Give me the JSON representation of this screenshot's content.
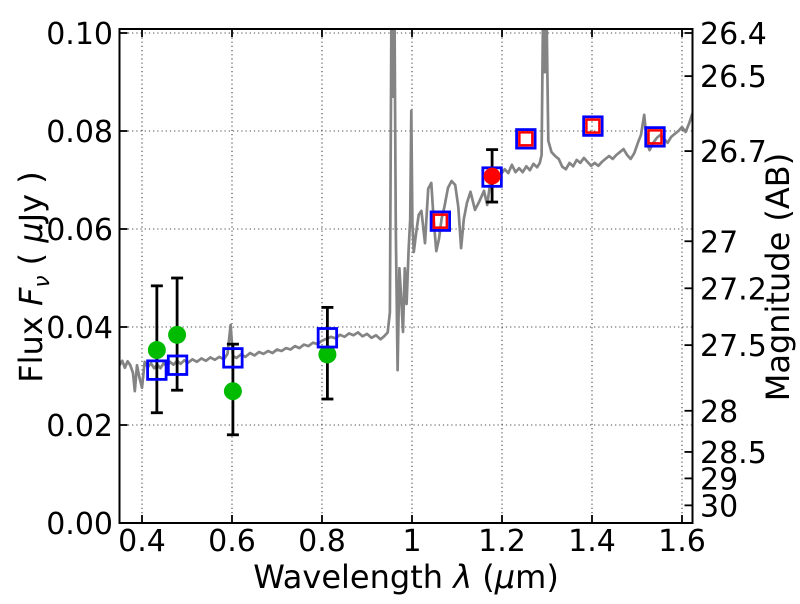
{
  "chart_data": {
    "type": "line+scatter",
    "title": "",
    "xlabel": "Wavelength λ (μm)",
    "ylabel_left": "Flux Fν ( μJy )",
    "ylabel_right": "Magnitude (AB)",
    "xlabel_parts": [
      {
        "t": "Wavelength  "
      },
      {
        "t": "λ",
        "style": "italic"
      },
      {
        "t": " ("
      },
      {
        "t": "μ",
        "style": "italic"
      },
      {
        "t": "m)"
      }
    ],
    "ylabel_left_parts": [
      {
        "t": "Flux  "
      },
      {
        "t": "F",
        "style": "italic"
      },
      {
        "t": "ν",
        "style": "italic",
        "script": "sub"
      },
      {
        "t": "  ( "
      },
      {
        "t": "μ",
        "style": "italic"
      },
      {
        "t": "Jy )"
      }
    ],
    "ylabel_right_parts": [
      {
        "t": "Magnitude (AB)"
      }
    ],
    "xlim": [
      0.349,
      1.623
    ],
    "ylim": [
      0.0,
      0.1
    ],
    "grid": {
      "on": true,
      "style": "dotted",
      "color": "#444444"
    },
    "x_ticks": [
      {
        "value": 0.4,
        "label": "0.4"
      },
      {
        "value": 0.6,
        "label": "0.6"
      },
      {
        "value": 0.8,
        "label": "0.8"
      },
      {
        "value": 1.0,
        "label": "1"
      },
      {
        "value": 1.2,
        "label": "1.2"
      },
      {
        "value": 1.4,
        "label": "1.4"
      },
      {
        "value": 1.6,
        "label": "1.6"
      }
    ],
    "y_ticks_left": [
      {
        "value": 0.0,
        "label": "0.00"
      },
      {
        "value": 0.02,
        "label": "0.02"
      },
      {
        "value": 0.04,
        "label": "0.04"
      },
      {
        "value": 0.06,
        "label": "0.06"
      },
      {
        "value": 0.08,
        "label": "0.08"
      },
      {
        "value": 0.1,
        "label": "0.10"
      }
    ],
    "y_ticks_right": [
      {
        "flux": 0.1,
        "label": "26.4"
      },
      {
        "flux": 0.0912,
        "label": "26.5"
      },
      {
        "flux": 0.0759,
        "label": "26.7"
      },
      {
        "flux": 0.0575,
        "label": "27"
      },
      {
        "flux": 0.0479,
        "label": "27.2"
      },
      {
        "flux": 0.0363,
        "label": "27.5"
      },
      {
        "flux": 0.0229,
        "label": "28"
      },
      {
        "flux": 0.0145,
        "label": "28.5"
      },
      {
        "flux": 0.0091,
        "label": "29"
      },
      {
        "flux": 0.0036,
        "label": "30"
      }
    ],
    "series": [
      {
        "name": "model-spectrum",
        "kind": "line",
        "color": "#848484",
        "points": [
          [
            0.35,
            0.0322
          ],
          [
            0.356,
            0.0331
          ],
          [
            0.362,
            0.0317
          ],
          [
            0.368,
            0.033
          ],
          [
            0.374,
            0.0322
          ],
          [
            0.38,
            0.0306
          ],
          [
            0.384,
            0.0269
          ],
          [
            0.389,
            0.0322
          ],
          [
            0.394,
            0.0298
          ],
          [
            0.4,
            0.0276
          ],
          [
            0.406,
            0.0329
          ],
          [
            0.413,
            0.0318
          ],
          [
            0.42,
            0.0326
          ],
          [
            0.427,
            0.0316
          ],
          [
            0.434,
            0.0323
          ],
          [
            0.441,
            0.0316
          ],
          [
            0.448,
            0.0326
          ],
          [
            0.455,
            0.032
          ],
          [
            0.462,
            0.0329
          ],
          [
            0.47,
            0.0323
          ],
          [
            0.478,
            0.0331
          ],
          [
            0.486,
            0.0325
          ],
          [
            0.494,
            0.0332
          ],
          [
            0.502,
            0.0327
          ],
          [
            0.512,
            0.0334
          ],
          [
            0.522,
            0.0329
          ],
          [
            0.532,
            0.0336
          ],
          [
            0.542,
            0.0331
          ],
          [
            0.552,
            0.0338
          ],
          [
            0.562,
            0.0333
          ],
          [
            0.572,
            0.0339
          ],
          [
            0.582,
            0.0334
          ],
          [
            0.59,
            0.0345
          ],
          [
            0.597,
            0.0404
          ],
          [
            0.602,
            0.0341
          ],
          [
            0.61,
            0.0337
          ],
          [
            0.62,
            0.0344
          ],
          [
            0.63,
            0.0339
          ],
          [
            0.64,
            0.0347
          ],
          [
            0.65,
            0.0342
          ],
          [
            0.66,
            0.0349
          ],
          [
            0.67,
            0.0345
          ],
          [
            0.68,
            0.0351
          ],
          [
            0.69,
            0.0347
          ],
          [
            0.7,
            0.0354
          ],
          [
            0.71,
            0.0351
          ],
          [
            0.72,
            0.0357
          ],
          [
            0.73,
            0.0354
          ],
          [
            0.74,
            0.0361
          ],
          [
            0.75,
            0.0357
          ],
          [
            0.76,
            0.0364
          ],
          [
            0.77,
            0.0361
          ],
          [
            0.78,
            0.0368
          ],
          [
            0.79,
            0.0365
          ],
          [
            0.8,
            0.0372
          ],
          [
            0.81,
            0.0376
          ],
          [
            0.82,
            0.038
          ],
          [
            0.83,
            0.0377
          ],
          [
            0.84,
            0.0384
          ],
          [
            0.85,
            0.038
          ],
          [
            0.86,
            0.0387
          ],
          [
            0.87,
            0.0383
          ],
          [
            0.88,
            0.0389
          ],
          [
            0.89,
            0.0381
          ],
          [
            0.9,
            0.0386
          ],
          [
            0.91,
            0.0378
          ],
          [
            0.92,
            0.0383
          ],
          [
            0.93,
            0.0375
          ],
          [
            0.938,
            0.0381
          ],
          [
            0.946,
            0.0389
          ],
          [
            0.951,
            0.043
          ],
          [
            0.9545,
            0.108
          ],
          [
            0.958,
            0.087
          ],
          [
            0.9608,
            0.108
          ],
          [
            0.964,
            0.06
          ],
          [
            0.968,
            0.0312
          ],
          [
            0.972,
            0.052
          ],
          [
            0.976,
            0.0459
          ],
          [
            0.98,
            0.039
          ],
          [
            0.984,
            0.052
          ],
          [
            0.988,
            0.0447
          ],
          [
            0.9925,
            0.0557
          ],
          [
            0.996,
            0.062
          ],
          [
            0.9985,
            0.0841
          ],
          [
            1.001,
            0.061
          ],
          [
            1.004,
            0.0553
          ],
          [
            1.009,
            0.059
          ],
          [
            1.015,
            0.0629
          ],
          [
            1.021,
            0.0637
          ],
          [
            1.029,
            0.0571
          ],
          [
            1.036,
            0.0682
          ],
          [
            1.043,
            0.0694
          ],
          [
            1.048,
            0.062
          ],
          [
            1.054,
            0.0555
          ],
          [
            1.06,
            0.058
          ],
          [
            1.066,
            0.0622
          ],
          [
            1.072,
            0.0645
          ],
          [
            1.08,
            0.0684
          ],
          [
            1.088,
            0.0698
          ],
          [
            1.096,
            0.069
          ],
          [
            1.103,
            0.0645
          ],
          [
            1.109,
            0.0561
          ],
          [
            1.115,
            0.062
          ],
          [
            1.122,
            0.0653
          ],
          [
            1.13,
            0.0676
          ],
          [
            1.14,
            0.0639
          ],
          [
            1.15,
            0.0657
          ],
          [
            1.16,
            0.0678
          ],
          [
            1.167,
            0.0649
          ],
          [
            1.174,
            0.0696
          ],
          [
            1.182,
            0.0712
          ],
          [
            1.19,
            0.0702
          ],
          [
            1.198,
            0.0712
          ],
          [
            1.206,
            0.0722
          ],
          [
            1.214,
            0.0714
          ],
          [
            1.222,
            0.0731
          ],
          [
            1.23,
            0.0716
          ],
          [
            1.238,
            0.0724
          ],
          [
            1.246,
            0.0716
          ],
          [
            1.254,
            0.0728
          ],
          [
            1.262,
            0.072
          ],
          [
            1.27,
            0.0733
          ],
          [
            1.278,
            0.0726
          ],
          [
            1.284,
            0.0735
          ],
          [
            1.288,
            0.0751
          ],
          [
            1.2915,
            0.108
          ],
          [
            1.295,
            0.092
          ],
          [
            1.2985,
            0.108
          ],
          [
            1.303,
            0.078
          ],
          [
            1.31,
            0.0757
          ],
          [
            1.318,
            0.0749
          ],
          [
            1.326,
            0.0743
          ],
          [
            1.334,
            0.0727
          ],
          [
            1.342,
            0.0722
          ],
          [
            1.35,
            0.0735
          ],
          [
            1.358,
            0.0728
          ],
          [
            1.366,
            0.0741
          ],
          [
            1.374,
            0.0735
          ],
          [
            1.382,
            0.0745
          ],
          [
            1.39,
            0.0737
          ],
          [
            1.398,
            0.0729
          ],
          [
            1.406,
            0.0735
          ],
          [
            1.414,
            0.0729
          ],
          [
            1.422,
            0.0737
          ],
          [
            1.43,
            0.0743
          ],
          [
            1.438,
            0.0749
          ],
          [
            1.446,
            0.0743
          ],
          [
            1.454,
            0.0751
          ],
          [
            1.462,
            0.0757
          ],
          [
            1.47,
            0.0763
          ],
          [
            1.478,
            0.0751
          ],
          [
            1.486,
            0.0743
          ],
          [
            1.494,
            0.0755
          ],
          [
            1.502,
            0.0776
          ],
          [
            1.509,
            0.0792
          ],
          [
            1.516,
            0.0833
          ],
          [
            1.522,
            0.0776
          ],
          [
            1.528,
            0.0761
          ],
          [
            1.536,
            0.0776
          ],
          [
            1.544,
            0.0786
          ],
          [
            1.552,
            0.0792
          ],
          [
            1.56,
            0.0784
          ],
          [
            1.568,
            0.0776
          ],
          [
            1.576,
            0.0788
          ],
          [
            1.584,
            0.0794
          ],
          [
            1.592,
            0.08
          ],
          [
            1.6,
            0.0808
          ],
          [
            1.608,
            0.0798
          ],
          [
            1.616,
            0.0816
          ],
          [
            1.623,
            0.0835
          ]
        ]
      },
      {
        "name": "observed-photometry-green-circles",
        "kind": "scatter",
        "marker": "filled-circle",
        "color": "#00bb00",
        "error_color": "#000000",
        "points": [
          {
            "x": 0.433,
            "y": 0.0353,
            "y_lo": 0.0225,
            "y_hi": 0.0484
          },
          {
            "x": 0.478,
            "y": 0.0384,
            "y_lo": 0.0271,
            "y_hi": 0.05
          },
          {
            "x": 0.602,
            "y": 0.0269,
            "y_lo": 0.018,
            "y_hi": 0.0365
          },
          {
            "x": 0.812,
            "y": 0.0344,
            "y_lo": 0.0253,
            "y_hi": 0.044
          }
        ]
      },
      {
        "name": "model-photometry-blue-squares",
        "kind": "scatter",
        "marker": "open-square",
        "color": "#0000ff",
        "points": [
          {
            "x": 0.433,
            "y": 0.0312
          },
          {
            "x": 0.479,
            "y": 0.0322
          },
          {
            "x": 0.602,
            "y": 0.0337
          },
          {
            "x": 0.812,
            "y": 0.0378
          },
          {
            "x": 1.063,
            "y": 0.0616
          },
          {
            "x": 1.178,
            "y": 0.0706
          },
          {
            "x": 1.253,
            "y": 0.0784
          },
          {
            "x": 1.402,
            "y": 0.081
          },
          {
            "x": 1.54,
            "y": 0.0788
          }
        ]
      },
      {
        "name": "observed-photometry-red-squares",
        "kind": "scatter",
        "marker": "open-square",
        "color": "#ff0000",
        "points": [
          {
            "x": 1.063,
            "y": 0.0616
          },
          {
            "x": 1.253,
            "y": 0.0784
          },
          {
            "x": 1.402,
            "y": 0.081
          },
          {
            "x": 1.54,
            "y": 0.0788
          }
        ]
      },
      {
        "name": "observed-photometry-red-circle",
        "kind": "scatter",
        "marker": "filled-circle",
        "color": "#ff0000",
        "error_color": "#000000",
        "points": [
          {
            "x": 1.178,
            "y": 0.0708,
            "y_lo": 0.0655,
            "y_hi": 0.0762
          }
        ]
      }
    ]
  }
}
